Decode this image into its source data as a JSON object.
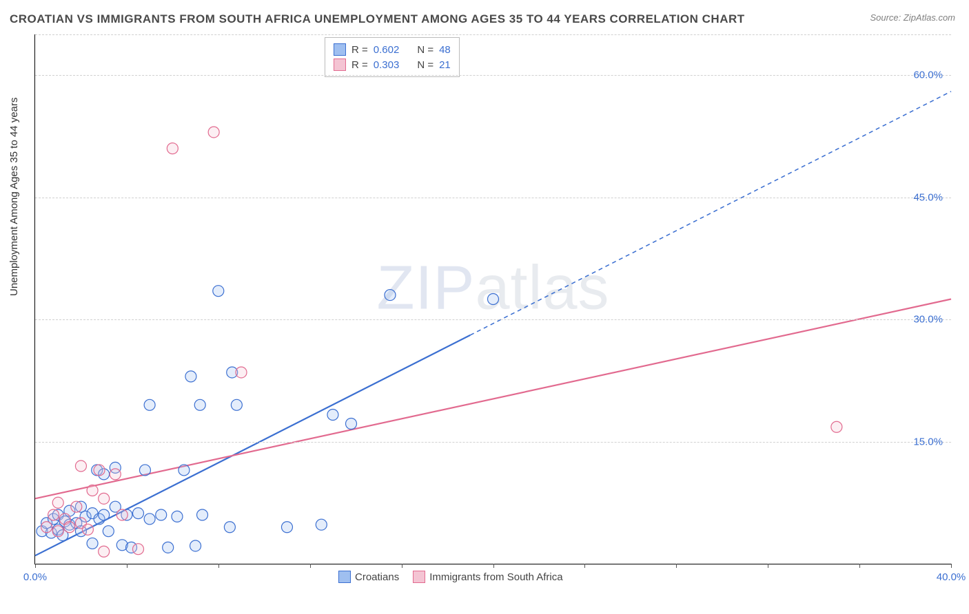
{
  "title": "CROATIAN VS IMMIGRANTS FROM SOUTH AFRICA UNEMPLOYMENT AMONG AGES 35 TO 44 YEARS CORRELATION CHART",
  "source": "Source: ZipAtlas.com",
  "watermark_a": "ZIP",
  "watermark_b": "atlas",
  "y_axis_label": "Unemployment Among Ages 35 to 44 years",
  "chart": {
    "type": "scatter",
    "xlim": [
      0,
      40
    ],
    "ylim": [
      0,
      65
    ],
    "x_ticks": [
      0,
      40
    ],
    "x_tick_labels": [
      "0.0%",
      "40.0%"
    ],
    "x_minor_ticks": [
      0,
      4,
      8,
      12,
      16,
      20,
      24,
      28,
      32,
      36,
      40
    ],
    "y_ticks": [
      15,
      30,
      45,
      60
    ],
    "y_tick_labels": [
      "15.0%",
      "30.0%",
      "45.0%",
      "60.0%"
    ],
    "grid_color_h": "#d0d0d0",
    "background_color": "#ffffff",
    "marker_radius": 8,
    "marker_stroke_width": 1.2,
    "marker_fill_opacity": 0.28,
    "line_width": 2.2,
    "dash_pattern": "6,5"
  },
  "series": [
    {
      "name": "Croatians",
      "color_stroke": "#3b6fd1",
      "color_fill": "#9fbff0",
      "r_label": "R =",
      "r_value": "0.602",
      "n_label": "N =",
      "n_value": "48",
      "trend": {
        "x1": 0,
        "y1": 1.0,
        "x2": 40,
        "y2": 58.0,
        "solid_until_x": 19
      },
      "points": [
        [
          0.3,
          4.0
        ],
        [
          0.5,
          5.0
        ],
        [
          0.7,
          3.8
        ],
        [
          0.8,
          5.5
        ],
        [
          1.0,
          4.2
        ],
        [
          1.0,
          6.0
        ],
        [
          1.2,
          3.5
        ],
        [
          1.3,
          5.2
        ],
        [
          1.5,
          4.8
        ],
        [
          1.5,
          6.5
        ],
        [
          1.8,
          5.0
        ],
        [
          2.0,
          4.0
        ],
        [
          2.0,
          7.0
        ],
        [
          2.2,
          5.8
        ],
        [
          2.5,
          6.2
        ],
        [
          2.5,
          2.5
        ],
        [
          2.7,
          11.5
        ],
        [
          2.8,
          5.5
        ],
        [
          3.0,
          6.0
        ],
        [
          3.0,
          11.0
        ],
        [
          3.2,
          4.0
        ],
        [
          3.5,
          7.0
        ],
        [
          3.5,
          11.8
        ],
        [
          3.8,
          2.3
        ],
        [
          4.0,
          6.0
        ],
        [
          4.2,
          2.0
        ],
        [
          4.5,
          6.2
        ],
        [
          4.8,
          11.5
        ],
        [
          5.0,
          5.5
        ],
        [
          5.0,
          19.5
        ],
        [
          5.5,
          6.0
        ],
        [
          5.8,
          2.0
        ],
        [
          6.2,
          5.8
        ],
        [
          6.5,
          11.5
        ],
        [
          6.8,
          23.0
        ],
        [
          7.0,
          2.2
        ],
        [
          7.2,
          19.5
        ],
        [
          7.3,
          6.0
        ],
        [
          8.0,
          33.5
        ],
        [
          8.5,
          4.5
        ],
        [
          8.6,
          23.5
        ],
        [
          8.8,
          19.5
        ],
        [
          11.0,
          4.5
        ],
        [
          12.5,
          4.8
        ],
        [
          13.0,
          18.3
        ],
        [
          13.8,
          17.2
        ],
        [
          15.5,
          33.0
        ],
        [
          20.0,
          32.5
        ]
      ]
    },
    {
      "name": "Immigrants from South Africa",
      "color_stroke": "#e26a8f",
      "color_fill": "#f4c4d3",
      "r_label": "R =",
      "r_value": "0.303",
      "n_label": "N =",
      "n_value": "21",
      "trend": {
        "x1": 0,
        "y1": 8.0,
        "x2": 40,
        "y2": 32.5,
        "solid_until_x": 40
      },
      "points": [
        [
          0.5,
          4.5
        ],
        [
          0.8,
          6.0
        ],
        [
          1.0,
          4.0
        ],
        [
          1.0,
          7.5
        ],
        [
          1.3,
          5.5
        ],
        [
          1.5,
          4.5
        ],
        [
          1.8,
          7.0
        ],
        [
          2.0,
          5.0
        ],
        [
          2.0,
          12.0
        ],
        [
          2.3,
          4.2
        ],
        [
          2.5,
          9.0
        ],
        [
          2.8,
          11.5
        ],
        [
          3.0,
          1.5
        ],
        [
          3.0,
          8.0
        ],
        [
          3.5,
          11.0
        ],
        [
          3.8,
          6.0
        ],
        [
          4.5,
          1.8
        ],
        [
          6.0,
          51.0
        ],
        [
          7.8,
          53.0
        ],
        [
          9.0,
          23.5
        ],
        [
          35.0,
          16.8
        ]
      ]
    }
  ],
  "legend_bottom": {
    "items": [
      {
        "swatch_stroke": "#3b6fd1",
        "swatch_fill": "#9fbff0",
        "label": "Croatians"
      },
      {
        "swatch_stroke": "#e26a8f",
        "swatch_fill": "#f4c4d3",
        "label": "Immigrants from South Africa"
      }
    ]
  }
}
